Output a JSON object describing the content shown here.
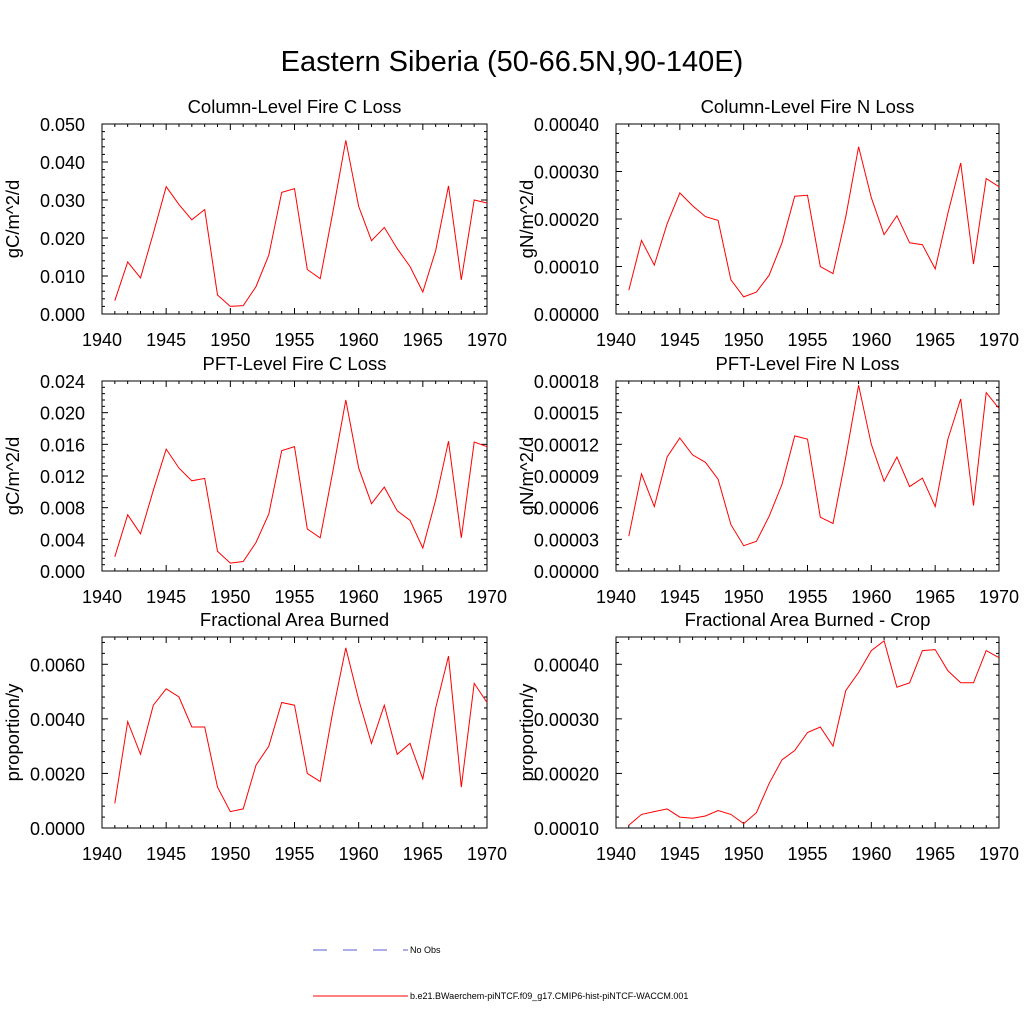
{
  "title": "Eastern Siberia (50-66.5N,90-140E)",
  "legend": {
    "obs_label": "No Obs",
    "model_label": "b.e21.BWaerchem-piNTCF.f09_g17.CMIP6-hist-piNTCF-WACCM.001",
    "obs_color": "#5b5bd6",
    "model_color": "#ff0000"
  },
  "chart_data": [
    {
      "type": "line",
      "title": "Column-Level Fire C Loss",
      "ylabel": "gC/m^2/d",
      "xlim": [
        1940,
        1970
      ],
      "ylim": [
        0,
        0.05
      ],
      "xticks": [
        "1940",
        "1945",
        "1950",
        "1955",
        "1960",
        "1965",
        "1970"
      ],
      "yticks": [
        "0.000",
        "0.010",
        "0.020",
        "0.030",
        "0.040",
        "0.050"
      ],
      "x": [
        1941,
        1942,
        1943,
        1944,
        1945,
        1946,
        1947,
        1948,
        1949,
        1950,
        1951,
        1952,
        1953,
        1954,
        1955,
        1956,
        1957,
        1958,
        1959,
        1960,
        1961,
        1962,
        1963,
        1964,
        1965,
        1966,
        1967,
        1968,
        1969,
        1970
      ],
      "series": [
        {
          "color": "#ff0000",
          "values": [
            0.0035,
            0.0137,
            0.0095,
            0.0212,
            0.0335,
            0.0288,
            0.0248,
            0.0275,
            0.005,
            0.002,
            0.0022,
            0.0072,
            0.0155,
            0.032,
            0.033,
            0.0117,
            0.0093,
            0.027,
            0.0457,
            0.0283,
            0.0193,
            0.0228,
            0.0172,
            0.0125,
            0.0058,
            0.0167,
            0.0337,
            0.009,
            0.03,
            0.0292
          ]
        }
      ]
    },
    {
      "type": "line",
      "title": "Column-Level Fire N Loss",
      "ylabel": "gN/m^2/d",
      "xlim": [
        1940,
        1970
      ],
      "ylim": [
        0,
        0.0004
      ],
      "xticks": [
        "1940",
        "1945",
        "1950",
        "1955",
        "1960",
        "1965",
        "1970"
      ],
      "yticks": [
        "0.00000",
        "0.00010",
        "0.00020",
        "0.00030",
        "0.00040"
      ],
      "x": [
        1941,
        1942,
        1943,
        1944,
        1945,
        1946,
        1947,
        1948,
        1949,
        1950,
        1951,
        1952,
        1953,
        1954,
        1955,
        1956,
        1957,
        1958,
        1959,
        1960,
        1961,
        1962,
        1963,
        1964,
        1965,
        1966,
        1967,
        1968,
        1969,
        1970
      ],
      "series": [
        {
          "color": "#ff0000",
          "values": [
            5e-05,
            0.000155,
            0.000103,
            0.00019,
            0.000255,
            0.000228,
            0.000205,
            0.000197,
            7.2e-05,
            3.6e-05,
            4.6e-05,
            8.2e-05,
            0.00015,
            0.000248,
            0.00025,
            0.0001,
            8.5e-05,
            0.000205,
            0.000352,
            0.000245,
            0.000167,
            0.000207,
            0.00015,
            0.000146,
            9.5e-05,
            0.000212,
            0.000318,
            0.000105,
            0.000285,
            0.000268
          ]
        }
      ]
    },
    {
      "type": "line",
      "title": "PFT-Level Fire C Loss",
      "ylabel": "gC/m^2/d",
      "xlim": [
        1940,
        1970
      ],
      "ylim": [
        0,
        0.024
      ],
      "xticks": [
        "1940",
        "1945",
        "1950",
        "1955",
        "1960",
        "1965",
        "1970"
      ],
      "yticks": [
        "0.000",
        "0.004",
        "0.008",
        "0.012",
        "0.016",
        "0.020",
        "0.024"
      ],
      "x": [
        1941,
        1942,
        1943,
        1944,
        1945,
        1946,
        1947,
        1948,
        1949,
        1950,
        1951,
        1952,
        1953,
        1954,
        1955,
        1956,
        1957,
        1958,
        1959,
        1960,
        1961,
        1962,
        1963,
        1964,
        1965,
        1966,
        1967,
        1968,
        1969,
        1970
      ],
      "series": [
        {
          "color": "#ff0000",
          "values": [
            0.0018,
            0.0071,
            0.0047,
            0.0102,
            0.0154,
            0.013,
            0.0114,
            0.0117,
            0.0025,
            0.001,
            0.0012,
            0.0036,
            0.0072,
            0.0152,
            0.0157,
            0.0053,
            0.0042,
            0.0127,
            0.0216,
            0.013,
            0.0085,
            0.0106,
            0.0076,
            0.0064,
            0.0029,
            0.009,
            0.0164,
            0.0042,
            0.0163,
            0.0157
          ]
        }
      ]
    },
    {
      "type": "line",
      "title": "PFT-Level Fire N Loss",
      "ylabel": "gN/m^2/d",
      "xlim": [
        1940,
        1970
      ],
      "ylim": [
        0,
        0.00018
      ],
      "xticks": [
        "1940",
        "1945",
        "1950",
        "1955",
        "1960",
        "1965",
        "1970"
      ],
      "yticks": [
        "0.00000",
        "0.00003",
        "0.00006",
        "0.00009",
        "0.00012",
        "0.00015",
        "0.00018"
      ],
      "x": [
        1941,
        1942,
        1943,
        1944,
        1945,
        1946,
        1947,
        1948,
        1949,
        1950,
        1951,
        1952,
        1953,
        1954,
        1955,
        1956,
        1957,
        1958,
        1959,
        1960,
        1961,
        1962,
        1963,
        1964,
        1965,
        1966,
        1967,
        1968,
        1969,
        1970
      ],
      "series": [
        {
          "color": "#ff0000",
          "values": [
            3.3e-05,
            9.2e-05,
            6.1e-05,
            0.000108,
            0.000126,
            0.00011,
            0.000103,
            8.7e-05,
            4.4e-05,
            2.4e-05,
            2.8e-05,
            5.2e-05,
            8.2e-05,
            0.000128,
            0.000125,
            5.1e-05,
            4.5e-05,
            0.000108,
            0.000176,
            0.00012,
            8.5e-05,
            0.000108,
            8e-05,
            8.8e-05,
            6.1e-05,
            0.000125,
            0.000163,
            6.2e-05,
            0.000169,
            0.000154
          ]
        }
      ]
    },
    {
      "type": "line",
      "title": "Fractional Area Burned",
      "ylabel": "proportion/y",
      "xlim": [
        1940,
        1970
      ],
      "ylim": [
        0,
        0.007
      ],
      "xticks": [
        "1940",
        "1945",
        "1950",
        "1955",
        "1960",
        "1965",
        "1970"
      ],
      "yticks": [
        "0.0000",
        "0.0020",
        "0.0040",
        "0.0060"
      ],
      "x": [
        1941,
        1942,
        1943,
        1944,
        1945,
        1946,
        1947,
        1948,
        1949,
        1950,
        1951,
        1952,
        1953,
        1954,
        1955,
        1956,
        1957,
        1958,
        1959,
        1960,
        1961,
        1962,
        1963,
        1964,
        1965,
        1966,
        1967,
        1968,
        1969,
        1970
      ],
      "series": [
        {
          "color": "#ff0000",
          "values": [
            0.0009,
            0.0039,
            0.0027,
            0.0045,
            0.0051,
            0.0048,
            0.0037,
            0.0037,
            0.0015,
            0.0006,
            0.0007,
            0.0023,
            0.003,
            0.0046,
            0.0045,
            0.002,
            0.0017,
            0.0043,
            0.0066,
            0.0047,
            0.0031,
            0.0045,
            0.0027,
            0.0031,
            0.0018,
            0.0044,
            0.0063,
            0.0015,
            0.0053,
            0.0046
          ]
        }
      ]
    },
    {
      "type": "line",
      "title": "Fractional Area Burned - Crop",
      "ylabel": "proportion/y",
      "xlim": [
        1940,
        1970
      ],
      "ylim": [
        0.0001,
        0.00045
      ],
      "xticks": [
        "1940",
        "1945",
        "1950",
        "1955",
        "1960",
        "1965",
        "1970"
      ],
      "yticks": [
        "0.00010",
        "0.00020",
        "0.00030",
        "0.00040"
      ],
      "x": [
        1941,
        1942,
        1943,
        1944,
        1945,
        1946,
        1947,
        1948,
        1949,
        1950,
        1951,
        1952,
        1953,
        1954,
        1955,
        1956,
        1957,
        1958,
        1959,
        1960,
        1961,
        1962,
        1963,
        1964,
        1965,
        1966,
        1967,
        1968,
        1969,
        1970
      ],
      "series": [
        {
          "color": "#ff0000",
          "values": [
            0.000105,
            0.000125,
            0.00013,
            0.000135,
            0.00012,
            0.000118,
            0.000122,
            0.000132,
            0.000125,
            0.000108,
            0.000128,
            0.000182,
            0.000225,
            0.000242,
            0.000275,
            0.000285,
            0.00025,
            0.000352,
            0.000385,
            0.000425,
            0.000443,
            0.000358,
            0.000366,
            0.000425,
            0.000427,
            0.000388,
            0.000366,
            0.000366,
            0.000425,
            0.000412
          ]
        }
      ]
    }
  ]
}
